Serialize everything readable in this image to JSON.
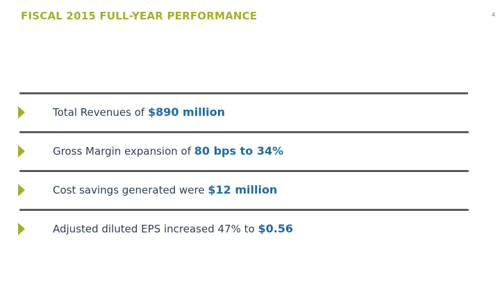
{
  "slide": {
    "title": "FISCAL 2015 FULL-YEAR PERFORMANCE",
    "page_number": "4"
  },
  "bullets": [
    {
      "text": "Total Revenues of ",
      "highlight": "$890 million",
      "suffix": ""
    },
    {
      "text": "Gross Margin expansion of ",
      "highlight": "80 bps to 34%",
      "suffix": ""
    },
    {
      "text": "Cost savings generated were ",
      "highlight": "$12 million",
      "suffix": ""
    },
    {
      "text": "Adjusted diluted EPS increased 47% to ",
      "highlight": "$0.56",
      "suffix": ""
    }
  ],
  "colors": {
    "title": "#a3ae2e",
    "bullet_arrow": "#a3ae2e",
    "body_text": "#2b3f55",
    "highlight_text": "#1f6aa3",
    "rule": "#5c5c5c"
  },
  "icons": {
    "bullet": "triangle-right-icon"
  }
}
